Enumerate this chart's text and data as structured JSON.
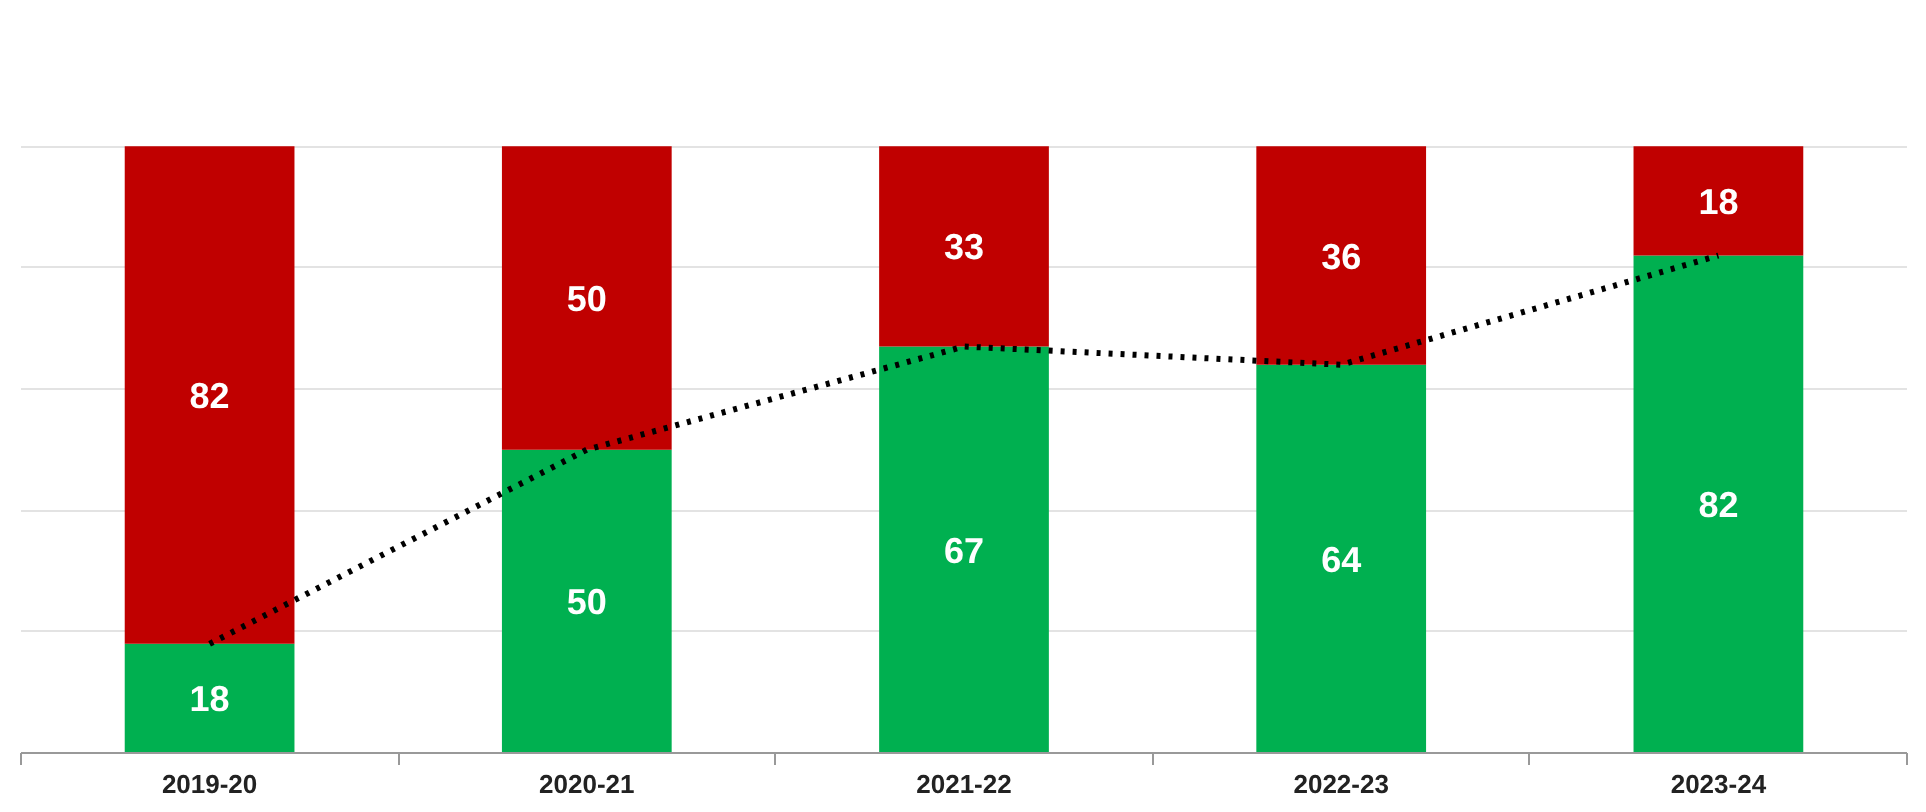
{
  "chart_data": {
    "type": "bar",
    "stacked": true,
    "categories": [
      "2019-20",
      "2020-21",
      "2021-22",
      "2022-23",
      "2023-24"
    ],
    "series": [
      {
        "color": "#00b050",
        "values": [
          18,
          50,
          67,
          64,
          82
        ]
      },
      {
        "color": "#c00000",
        "values": [
          82,
          50,
          33,
          36,
          18
        ]
      },
      {
        "type": "line",
        "x": [
          "2019-20",
          "2020-21",
          "2021-22",
          "2022-23",
          "2023-24"
        ],
        "color": "#000000",
        "values": [
          18,
          50,
          67,
          64,
          82
        ],
        "line_style": "dotted",
        "marker": "none",
        "value_labels": [
          null,
          null,
          null,
          null,
          null
        ]
      }
    ],
    "data_labels": true,
    "yticks": [
      {
        "value": 0,
        "label": null
      },
      {
        "value": 20,
        "label": null
      },
      {
        "value": 40,
        "label": null
      },
      {
        "value": 60,
        "label": null
      },
      {
        "value": 80,
        "label": null
      },
      {
        "value": 100,
        "label": null
      }
    ],
    "grid": "y",
    "tick_labels": "x"
  }
}
